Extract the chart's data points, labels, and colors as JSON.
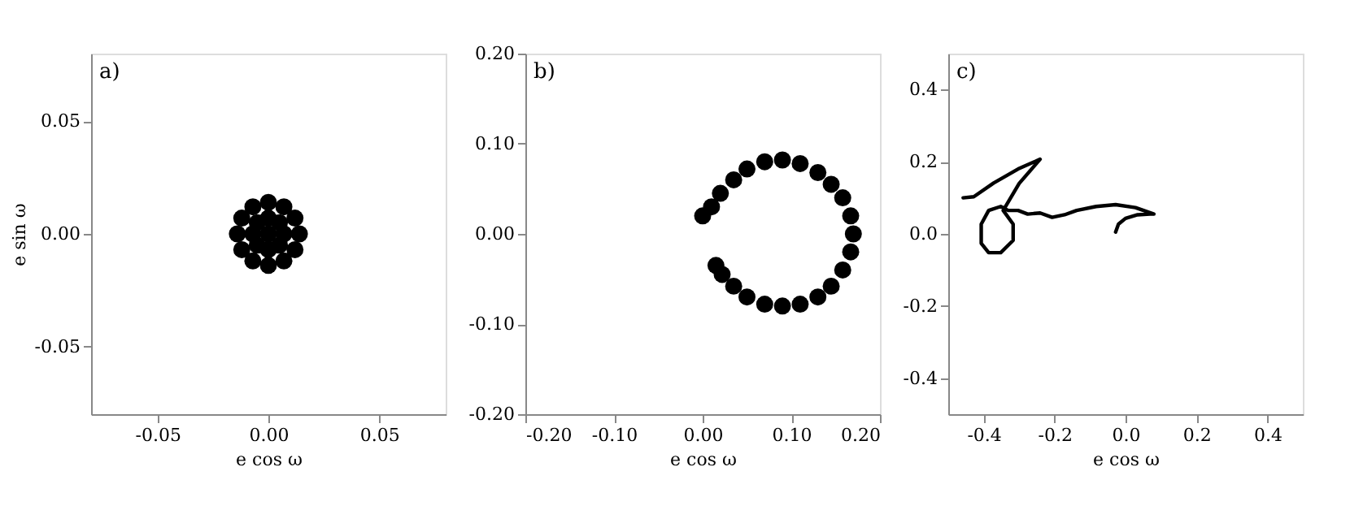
{
  "chart_data": [
    {
      "type": "scatter",
      "xlabel": "e cos ω",
      "ylabel": "e sin ω",
      "annotations": [
        "a)"
      ],
      "xlim": [
        -0.08,
        0.08
      ],
      "ylim": [
        -0.08,
        0.08
      ],
      "xticks": [
        -0.05,
        {
          "value": 0,
          "label": "0.00"
        },
        0.05
      ],
      "yticks": [
        -0.05,
        {
          "value": 0,
          "label": "0.00"
        },
        0.05
      ],
      "marker": "circle",
      "series": [
        {
          "color": "#000000",
          "x": [
            0,
            0.007,
            0.005,
            0,
            -0.005,
            -0.007,
            -0.005,
            0,
            0.005,
            0.014,
            0.012,
            0.007,
            0,
            -0.007,
            -0.012,
            -0.014,
            -0.012,
            -0.007,
            0,
            0.007,
            0.012
          ],
          "values": [
            0,
            0,
            0.005,
            0.007,
            0.005,
            0,
            -0.005,
            -0.007,
            -0.005,
            0,
            0.007,
            0.012,
            0.014,
            0.012,
            0.007,
            0,
            -0.007,
            -0.012,
            -0.014,
            -0.012,
            -0.007
          ]
        }
      ]
    },
    {
      "type": "scatter",
      "xlabel": "e cos ω",
      "annotations": [
        "b)"
      ],
      "xlim": [
        -0.2,
        0.2
      ],
      "ylim": [
        -0.2,
        0.2
      ],
      "xticks": [
        {
          "value": -0.2,
          "label": "-0.20"
        },
        {
          "value": -0.1,
          "label": "-0.10"
        },
        {
          "value": 0,
          "label": "0.00"
        },
        {
          "value": 0.1,
          "label": "0.10"
        },
        {
          "value": 0.2,
          "label": "0.20"
        }
      ],
      "yticks": [
        {
          "value": -0.2,
          "label": "-0.20"
        },
        {
          "value": -0.1,
          "label": "-0.10"
        },
        {
          "value": 0,
          "label": "0.00"
        },
        {
          "value": 0.1,
          "label": "0.10"
        },
        {
          "value": 0.2,
          "label": "0.20"
        }
      ],
      "marker": "circle",
      "series": [
        {
          "color": "#000000",
          "x": [
            0.0,
            0.01,
            0.02,
            0.035,
            0.05,
            0.07,
            0.09,
            0.11,
            0.13,
            0.145,
            0.158,
            0.167,
            0.17,
            0.167,
            0.158,
            0.145,
            0.13,
            0.11,
            0.09,
            0.07,
            0.05,
            0.035,
            0.022,
            0.015
          ],
          "values": [
            0.02,
            0.03,
            0.045,
            0.06,
            0.072,
            0.08,
            0.082,
            0.078,
            0.068,
            0.055,
            0.04,
            0.02,
            0.0,
            -0.02,
            -0.04,
            -0.058,
            -0.07,
            -0.078,
            -0.08,
            -0.078,
            -0.07,
            -0.058,
            -0.045,
            -0.035
          ]
        }
      ]
    },
    {
      "type": "line",
      "xlabel": "e cos ω",
      "annotations": [
        "c)"
      ],
      "xlim": [
        -0.5,
        0.5
      ],
      "ylim": [
        -0.5,
        0.5
      ],
      "xticks": [
        -0.4,
        -0.2,
        {
          "value": 0,
          "label": "0.0"
        },
        0.2,
        0.4
      ],
      "yticks": [
        -0.4,
        -0.2,
        {
          "value": 0,
          "label": "0.0"
        },
        0.2,
        0.4
      ],
      "marker": "none",
      "line_style": "solid",
      "series": [
        {
          "color": "#000000",
          "x": [
            -0.028,
            -0.02,
            0.0,
            0.034,
            0.069,
            0.08,
            0.028,
            -0.028,
            -0.083,
            -0.138,
            -0.172,
            -0.207,
            -0.241,
            -0.276,
            -0.303,
            -0.331,
            -0.352,
            -0.386,
            -0.407,
            -0.407,
            -0.386,
            -0.352,
            -0.317,
            -0.317,
            -0.345,
            -0.3,
            -0.241,
            -0.303,
            -0.372,
            -0.428,
            -0.458
          ],
          "values": [
            0.005,
            0.027,
            0.043,
            0.053,
            0.055,
            0.055,
            0.073,
            0.081,
            0.076,
            0.065,
            0.053,
            0.046,
            0.058,
            0.055,
            0.065,
            0.065,
            0.076,
            0.065,
            0.027,
            -0.026,
            -0.052,
            -0.052,
            -0.018,
            0.027,
            0.065,
            0.14,
            0.207,
            0.18,
            0.141,
            0.103,
            0.1
          ]
        }
      ]
    }
  ]
}
